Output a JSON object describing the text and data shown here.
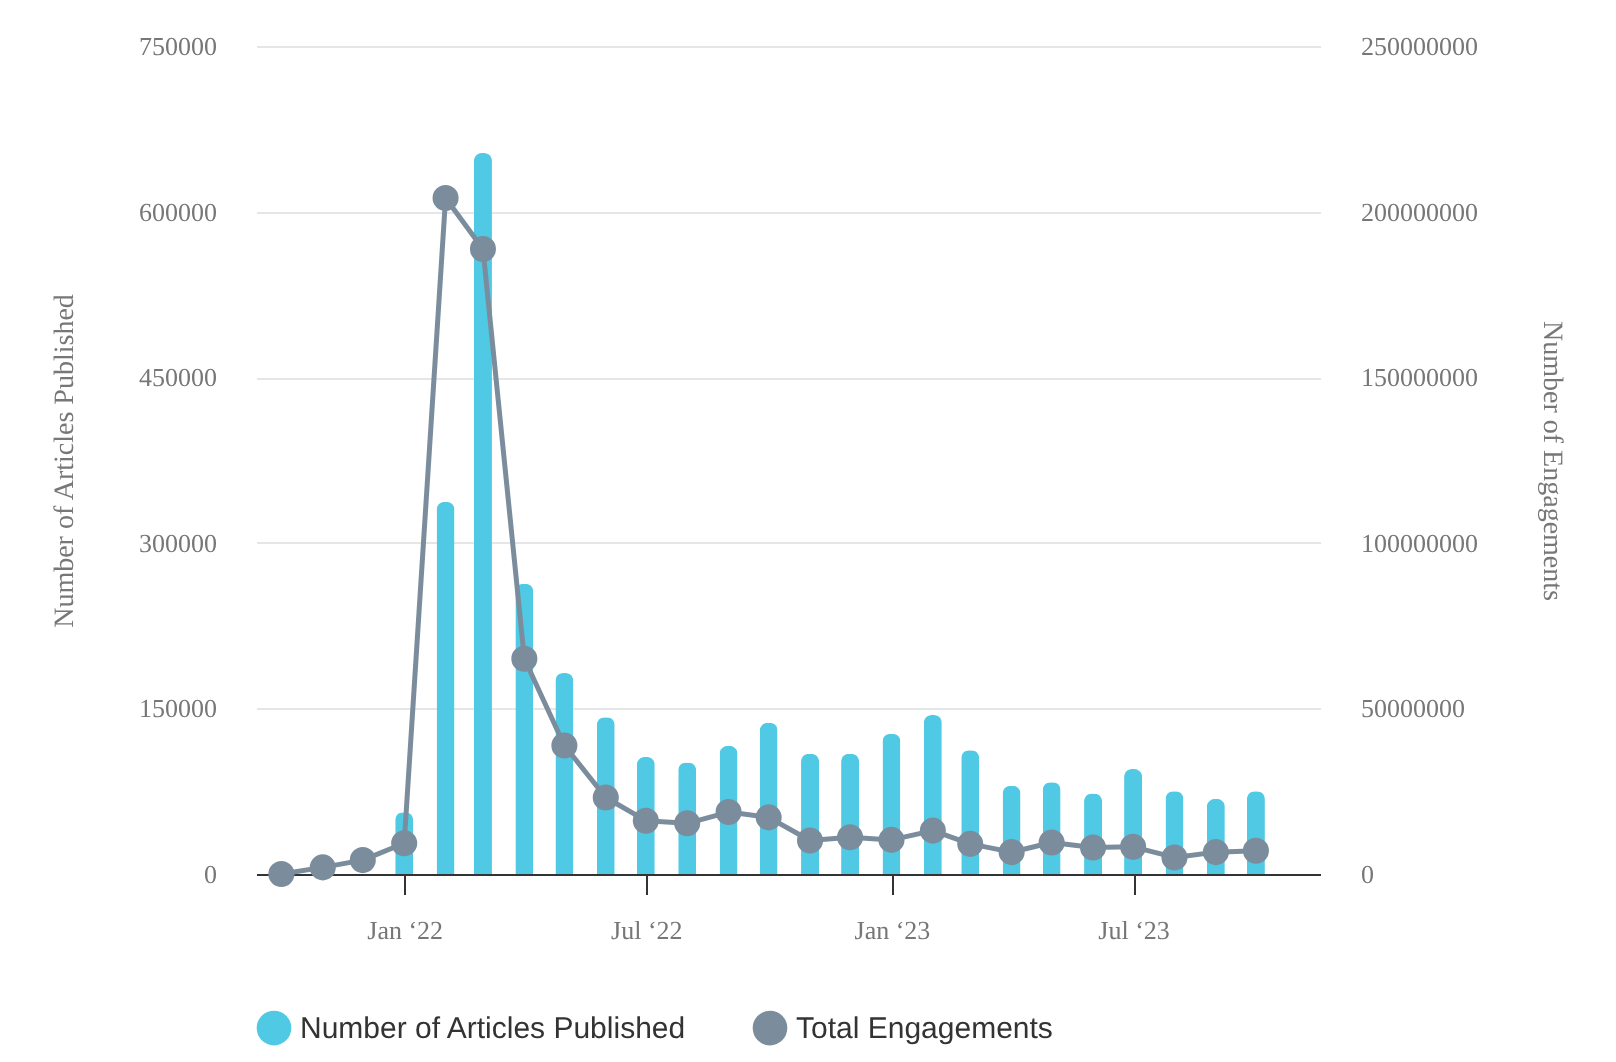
{
  "chart_data": {
    "type": "bar",
    "x": [
      "2021-10",
      "2021-11",
      "2021-12",
      "2022-01",
      "2022-02",
      "2022-03",
      "2022-04",
      "2022-05",
      "2022-06",
      "2022-07",
      "2022-08",
      "2022-09",
      "2022-10",
      "2022-11",
      "2022-12",
      "2023-01",
      "2023-02",
      "2023-03",
      "2023-04",
      "2023-05",
      "2023-06",
      "2023-07",
      "2023-08",
      "2023-09",
      "2023-10"
    ],
    "xlim": [
      "2021-09-12",
      "2023-11-18"
    ],
    "xticks": [
      {
        "value": "2022-01",
        "label": "Jan ‘22"
      },
      {
        "value": "2022-07",
        "label": "Jul ‘22"
      },
      {
        "value": "2023-01",
        "label": "Jan ‘23"
      },
      {
        "value": "2023-07",
        "label": "Jul ‘23"
      }
    ],
    "ylabel": "Number of Articles Published",
    "y2label": "Number of Engagements",
    "ylim": [
      0,
      750000
    ],
    "yticks": [
      0,
      150000,
      300000,
      450000,
      600000,
      750000
    ],
    "y2lim": [
      0,
      250000000
    ],
    "y2ticks": [
      0,
      50000000,
      100000000,
      150000000,
      200000000,
      250000000
    ],
    "series": [
      {
        "name": "Number of Articles Published",
        "color": "#4fc9e4",
        "values": [
          0,
          0,
          0,
          56000,
          337000,
          653000,
          263000,
          182000,
          142000,
          106000,
          101000,
          116000,
          137000,
          109000,
          109000,
          127000,
          144000,
          112000,
          80000,
          83000,
          73000,
          95000,
          75000,
          68000,
          75000
        ]
      },
      {
        "name": "Total Engagements",
        "type": "line",
        "axis": "y2",
        "color": "#7b8d9c",
        "marker": "circle",
        "values": [
          0,
          2000000,
          4200000,
          9300000,
          204100000,
          188700000,
          65000000,
          38800000,
          23100000,
          16100000,
          15300000,
          18700000,
          17100000,
          10100000,
          11100000,
          10300000,
          13100000,
          9100000,
          6600000,
          9500000,
          8000000,
          8200000,
          5000000,
          6600000,
          7000000
        ]
      }
    ],
    "grid": "y",
    "legend": "bottom"
  }
}
